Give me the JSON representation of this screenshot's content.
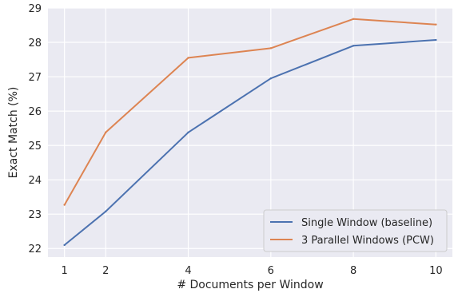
{
  "chart_data": {
    "type": "line",
    "title": "",
    "xlabel": "# Documents per Window",
    "ylabel": "Exact Match (%)",
    "xlim": [
      0.6,
      10.4
    ],
    "ylim": [
      21.75,
      29.0
    ],
    "grid": true,
    "legend_position": "bottom-right",
    "x_ticks": [
      1,
      2,
      4,
      6,
      8,
      10
    ],
    "x_tick_labels": [
      "1",
      "2",
      "4",
      "6",
      "8",
      "10"
    ],
    "y_ticks": [
      22,
      23,
      24,
      25,
      26,
      27,
      28,
      29
    ],
    "y_tick_labels": [
      "22",
      "23",
      "24",
      "25",
      "26",
      "27",
      "28",
      "29"
    ],
    "x": [
      1,
      2,
      4,
      6,
      8,
      10
    ],
    "series": [
      {
        "name": "Single Window (baseline)",
        "color": "#4c72b0",
        "values": [
          22.1,
          23.08,
          25.38,
          26.95,
          27.9,
          28.07
        ]
      },
      {
        "name": "3 Parallel Windows (PCW)",
        "color": "#dd8452",
        "values": [
          23.27,
          25.38,
          27.55,
          27.83,
          28.68,
          28.52
        ]
      }
    ]
  }
}
